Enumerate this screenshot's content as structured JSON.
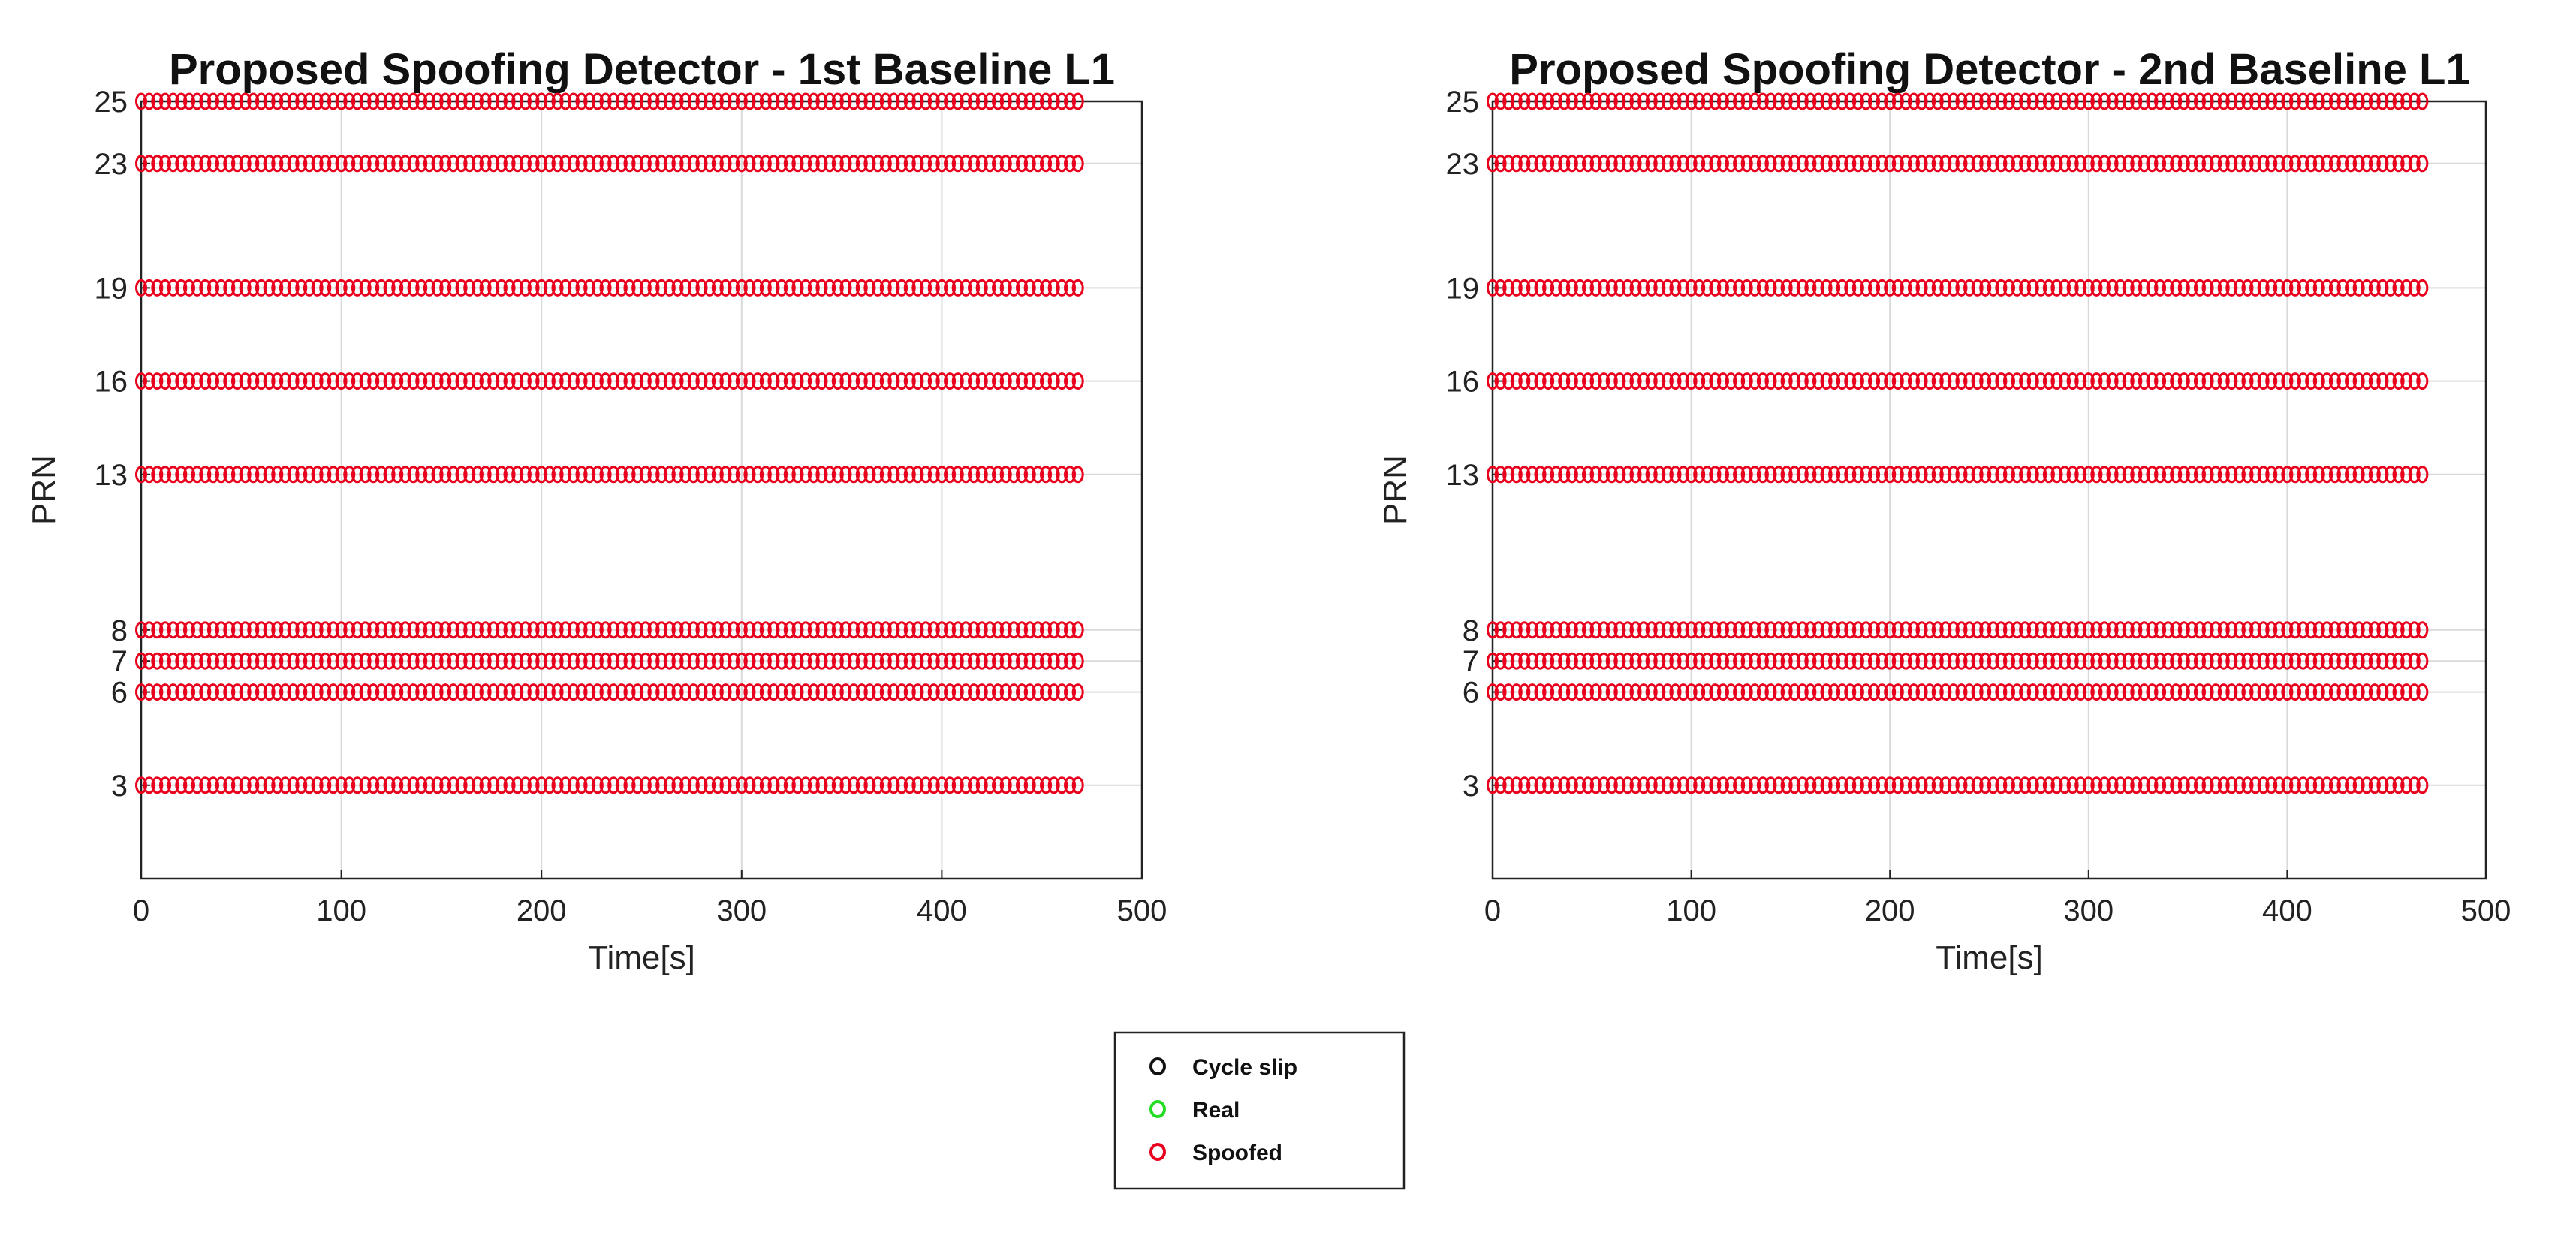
{
  "chart_data": [
    {
      "type": "scatter",
      "title": "Proposed Spoofing Detector - 1st Baseline L1",
      "xlabel": "Time[s]",
      "ylabel": "PRN",
      "xlim": [
        0,
        500
      ],
      "ylim": [
        0,
        25
      ],
      "x_ticks": [
        0,
        100,
        200,
        300,
        400,
        500
      ],
      "y_ticks": [
        3,
        6,
        7,
        8,
        13,
        16,
        19,
        23,
        25
      ],
      "grid": true,
      "series": [
        {
          "name": "Spoofed",
          "color": "#e8001c",
          "prns": [
            3,
            6,
            7,
            8,
            13,
            16,
            19,
            23,
            25
          ],
          "x_start": 0,
          "x_end": 468,
          "x_step": 4
        }
      ]
    },
    {
      "type": "scatter",
      "title": "Proposed Spoofing Detector - 2nd Baseline L1",
      "xlabel": "Time[s]",
      "ylabel": "PRN",
      "xlim": [
        0,
        500
      ],
      "ylim": [
        0,
        25
      ],
      "x_ticks": [
        0,
        100,
        200,
        300,
        400,
        500
      ],
      "y_ticks": [
        3,
        6,
        7,
        8,
        13,
        16,
        19,
        23,
        25
      ],
      "grid": true,
      "series": [
        {
          "name": "Spoofed",
          "color": "#e8001c",
          "prns": [
            3,
            6,
            7,
            8,
            13,
            16,
            19,
            23,
            25
          ],
          "x_start": 0,
          "x_end": 468,
          "x_step": 4
        }
      ]
    }
  ],
  "legend": {
    "placement": "bottom-center",
    "items": [
      {
        "label": "Cycle slip",
        "color": "#111111"
      },
      {
        "label": "Real",
        "color": "#22dd22"
      },
      {
        "label": "Spoofed",
        "color": "#e8001c"
      }
    ]
  }
}
